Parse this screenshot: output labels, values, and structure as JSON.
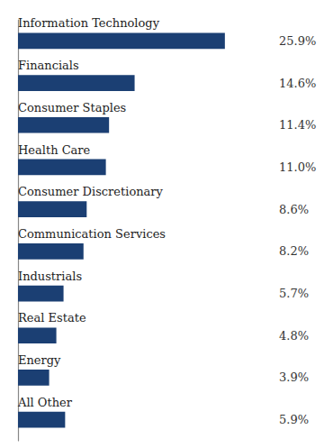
{
  "chart_data": {
    "type": "bar",
    "orientation": "horizontal",
    "categories": [
      "Information Technology",
      "Financials",
      "Consumer Staples",
      "Health Care",
      "Consumer Discretionary",
      "Communication Services",
      "Industrials",
      "Real Estate",
      "Energy",
      "All Other"
    ],
    "values": [
      25.9,
      14.6,
      11.4,
      11.0,
      8.6,
      8.2,
      5.7,
      4.8,
      3.9,
      5.9
    ],
    "value_labels": [
      "25.9%",
      "14.6%",
      "11.4%",
      "11.0%",
      "8.6%",
      "8.2%",
      "5.7%",
      "4.8%",
      "3.9%",
      "5.9%"
    ],
    "color": "#1b3f73",
    "xlim": [
      0,
      32
    ],
    "data_labels": true,
    "tick_labels": false,
    "grid": false
  }
}
